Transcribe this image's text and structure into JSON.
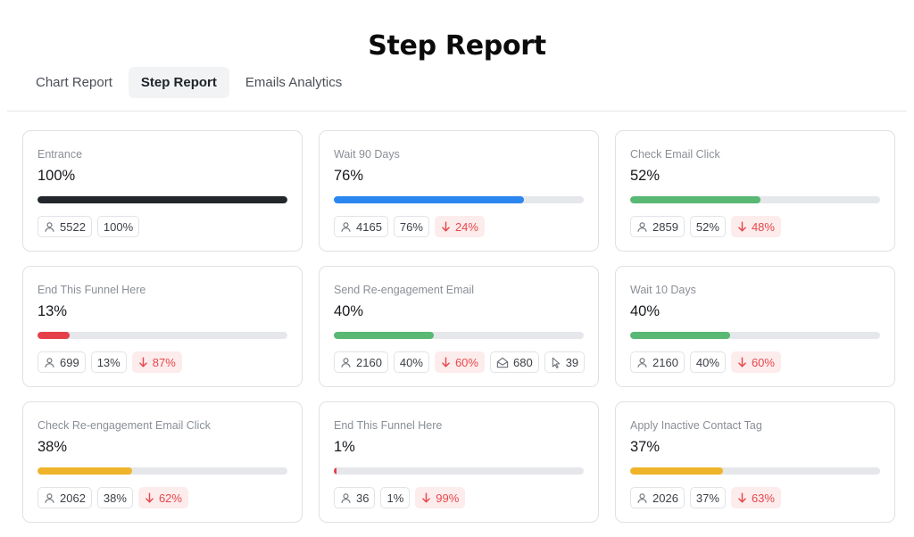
{
  "header": {
    "title": "Step Report"
  },
  "tabs": [
    {
      "label": "Chart Report",
      "active": false
    },
    {
      "label": "Step Report",
      "active": true
    },
    {
      "label": "Emails Analytics",
      "active": false
    }
  ],
  "colors": {
    "black": "#23262b",
    "blue": "#2b86f0",
    "green": "#58b874",
    "red": "#e5404a",
    "yellow": "#efb429"
  },
  "cards": [
    {
      "title": "Entrance",
      "percent": "100%",
      "progress": 100,
      "bar_color": "#23262b",
      "contacts": "5522",
      "pct_label": "100%",
      "drop": null,
      "opens": null,
      "clicks": null
    },
    {
      "title": "Wait 90 Days",
      "percent": "76%",
      "progress": 76,
      "bar_color": "#2b86f0",
      "contacts": "4165",
      "pct_label": "76%",
      "drop": "24%",
      "opens": null,
      "clicks": null
    },
    {
      "title": "Check Email Click",
      "percent": "52%",
      "progress": 52,
      "bar_color": "#58b874",
      "contacts": "2859",
      "pct_label": "52%",
      "drop": "48%",
      "opens": null,
      "clicks": null
    },
    {
      "title": "End This Funnel Here",
      "percent": "13%",
      "progress": 13,
      "bar_color": "#e5404a",
      "contacts": "699",
      "pct_label": "13%",
      "drop": "87%",
      "opens": null,
      "clicks": null
    },
    {
      "title": "Send Re-engagement Email",
      "percent": "40%",
      "progress": 40,
      "bar_color": "#58b874",
      "contacts": "2160",
      "pct_label": "40%",
      "drop": "60%",
      "opens": "680",
      "clicks": "39"
    },
    {
      "title": "Wait 10 Days",
      "percent": "40%",
      "progress": 40,
      "bar_color": "#58b874",
      "contacts": "2160",
      "pct_label": "40%",
      "drop": "60%",
      "opens": null,
      "clicks": null
    },
    {
      "title": "Check Re-engagement Email Click",
      "percent": "38%",
      "progress": 38,
      "bar_color": "#efb429",
      "contacts": "2062",
      "pct_label": "38%",
      "drop": "62%",
      "opens": null,
      "clicks": null
    },
    {
      "title": "End This Funnel Here",
      "percent": "1%",
      "progress": 1,
      "bar_color": "#e5404a",
      "contacts": "36",
      "pct_label": "1%",
      "drop": "99%",
      "opens": null,
      "clicks": null
    },
    {
      "title": "Apply Inactive Contact Tag",
      "percent": "37%",
      "progress": 37,
      "bar_color": "#efb429",
      "contacts": "2026",
      "pct_label": "37%",
      "drop": "63%",
      "opens": null,
      "clicks": null
    }
  ]
}
